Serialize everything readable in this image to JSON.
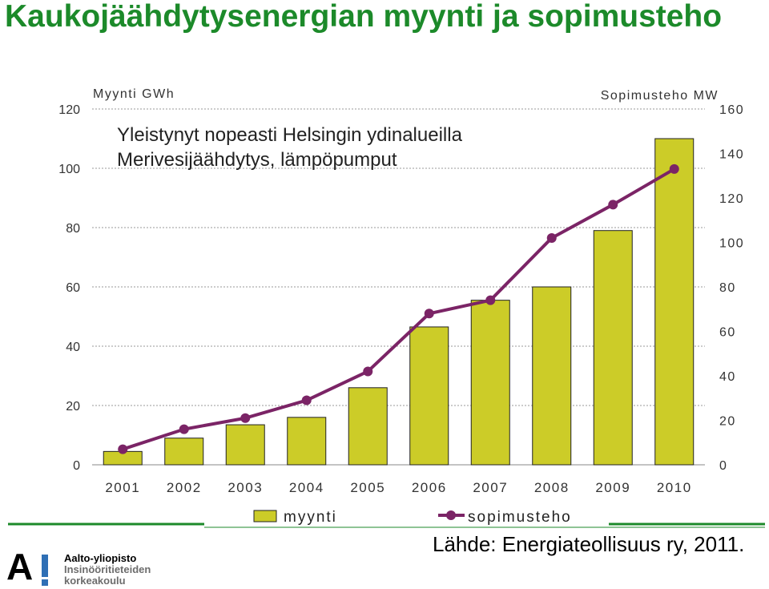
{
  "page": {
    "title": "Kaukojäähdytysenergian myynti ja sopimusteho",
    "source": "Lähde: Energiateollisuus ry, 2011.",
    "logo": {
      "line1": "Aalto-yliopisto",
      "line2": "Insinööritieteiden",
      "line3": "korkeakoulu"
    }
  },
  "colors": {
    "title": "#1c8a2a",
    "bar": "#cccc28",
    "line": "#7b2466",
    "accent_lines": "#1c8a2a"
  },
  "chart_data": {
    "type": "bar",
    "categories": [
      "2001",
      "2002",
      "2003",
      "2004",
      "2005",
      "2006",
      "2007",
      "2008",
      "2009",
      "2010"
    ],
    "series": [
      {
        "name": "myynti",
        "type": "bar",
        "axis": "left",
        "values": [
          4.5,
          9,
          13.5,
          16,
          26,
          46.5,
          55.5,
          60,
          79,
          110
        ]
      },
      {
        "name": "sopimusteho",
        "type": "line",
        "axis": "right",
        "values": [
          7,
          16,
          21,
          29,
          42,
          68,
          74,
          102,
          117,
          133
        ]
      }
    ],
    "annotation": {
      "line1": "Yleistynyt nopeasti Helsingin ydinalueilla",
      "line2": "Merivesijäähdytys, lämpöpumput"
    },
    "y_left": {
      "label": "Myynti GWh",
      "lim": [
        0,
        120
      ],
      "ticks": [
        0,
        20,
        40,
        60,
        80,
        100,
        120
      ]
    },
    "y_right": {
      "label": "Sopimusteho MW",
      "lim": [
        0,
        160
      ],
      "ticks": [
        0,
        20,
        40,
        60,
        80,
        100,
        120,
        140,
        160
      ]
    },
    "grid": "dotted horizontal",
    "legend_position": "bottom"
  }
}
